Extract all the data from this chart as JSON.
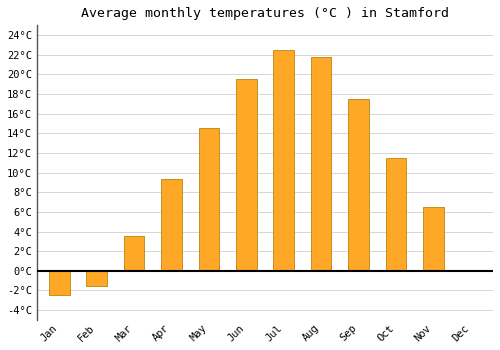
{
  "title": "Average monthly temperatures (°C ) in Stamford",
  "months": [
    "Jan",
    "Feb",
    "Mar",
    "Apr",
    "May",
    "Jun",
    "Jul",
    "Aug",
    "Sep",
    "Oct",
    "Nov",
    "Dec"
  ],
  "values": [
    -2.5,
    -1.5,
    3.5,
    9.3,
    14.5,
    19.5,
    22.5,
    21.8,
    17.5,
    11.5,
    6.5,
    0.0
  ],
  "bar_color": "#FFA726",
  "ylim": [
    -5,
    25
  ],
  "yticks": [
    -4,
    -2,
    0,
    2,
    4,
    6,
    8,
    10,
    12,
    14,
    16,
    18,
    20,
    22,
    24
  ],
  "ytick_labels": [
    "-4°C",
    "-2°C",
    "0°C",
    "2°C",
    "4°C",
    "6°C",
    "8°C",
    "10°C",
    "12°C",
    "14°C",
    "16°C",
    "18°C",
    "20°C",
    "22°C",
    "24°C"
  ],
  "grid_color": "#d0d0d0",
  "background_color": "#ffffff",
  "title_fontsize": 9.5,
  "tick_fontsize": 7.5,
  "bar_width": 0.55,
  "zero_line_color": "#000000",
  "left_spine_color": "#555555",
  "bar_edge_color": "#b8860b"
}
